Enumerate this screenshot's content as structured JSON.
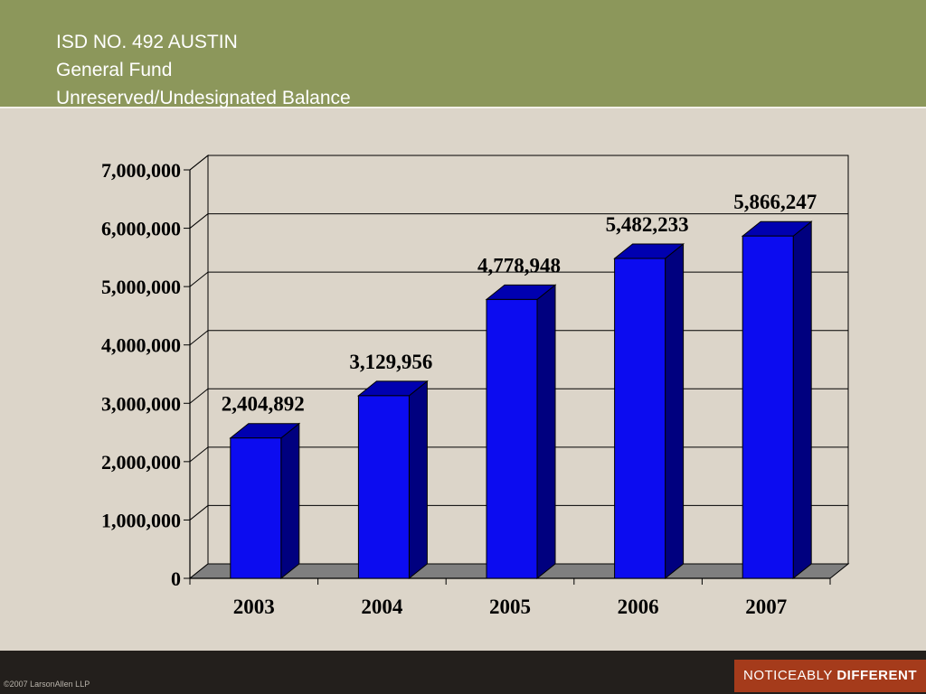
{
  "header": {
    "title_lines": [
      "ISD NO. 492 AUSTIN",
      "General Fund",
      "Unreserved/Undesignated Balance"
    ]
  },
  "footer": {
    "copyright": "©2007 LarsonAllen LLP",
    "tagline_light": "NOTICEABLY",
    "tagline_bold": "DIFFERENT"
  },
  "colors": {
    "header_bg": "#8c975b",
    "slide_bg": "#dcd5c9",
    "bar_front": "#0c0cf0",
    "bar_side": "#00007f",
    "bar_top": "#0000b0",
    "floor": "#7f7f7f",
    "footer_bg": "#231f1c",
    "tagline_bg": "#a53b1b"
  },
  "chart_data": {
    "type": "bar",
    "style": "3d-column",
    "title": "",
    "xlabel": "",
    "ylabel": "",
    "categories": [
      "2003",
      "2004",
      "2005",
      "2006",
      "2007"
    ],
    "values": [
      2404892,
      3129956,
      4778948,
      5482233,
      5866247
    ],
    "data_labels": [
      "2,404,892",
      "3,129,956",
      "4,778,948",
      "5,482,233",
      "5,866,247"
    ],
    "ylim": [
      0,
      7000000
    ],
    "y_ticks": [
      0,
      1000000,
      2000000,
      3000000,
      4000000,
      5000000,
      6000000,
      7000000
    ],
    "y_tick_labels": [
      "0",
      "1,000,000",
      "2,000,000",
      "3,000,000",
      "4,000,000",
      "5,000,000",
      "6,000,000",
      "7,000,000"
    ],
    "grid": true,
    "legend": "none"
  }
}
